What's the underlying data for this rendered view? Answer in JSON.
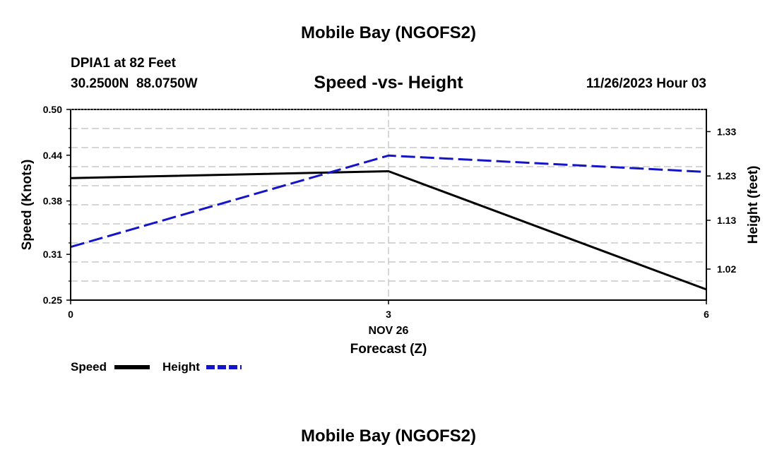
{
  "chart_data": {
    "type": "line",
    "title": "Mobile Bay (NGOFS2)",
    "station_line": "DPIA1 at 82 Feet",
    "coord_line": "30.2500N  88.0750W",
    "subtitle": "Speed -vs- Height",
    "datetime": "11/26/2023 Hour 03",
    "footer_title": "Mobile Bay (NGOFS2)",
    "xlabel": "Forecast (Z)",
    "xdate_label": "NOV 26",
    "ylabel_left": "Speed (Knots)",
    "ylabel_right": "Height (feet)",
    "xlim": [
      0,
      6
    ],
    "ylim_left": [
      0.25,
      0.5
    ],
    "ylim_right": [
      0.95,
      1.38
    ],
    "x_ticks": [
      0,
      3,
      6
    ],
    "x_tick_labels": [
      "0",
      "3",
      "6"
    ],
    "y_ticks_left": [
      0.25,
      0.31,
      0.38,
      0.44,
      0.5
    ],
    "y_tick_labels_left": [
      "0.25",
      "0.31",
      "0.38",
      "0.44",
      "0.50"
    ],
    "y_ticks_right": [
      1.02,
      1.13,
      1.23,
      1.33
    ],
    "y_tick_labels_right": [
      "1.02",
      "1.13",
      "1.23",
      "1.33"
    ],
    "grid_y_left": [
      0.275,
      0.3,
      0.325,
      0.35,
      0.375,
      0.4,
      0.425,
      0.45,
      0.475
    ],
    "grid_x": [
      3
    ],
    "series": [
      {
        "name": "Speed",
        "axis": "left",
        "color": "#000000",
        "dash": "solid",
        "x": [
          0,
          3,
          6
        ],
        "values": [
          0.41,
          0.419,
          0.264
        ]
      },
      {
        "name": "Height",
        "axis": "right",
        "color": "#1414c8",
        "dash": "dashed",
        "x": [
          0,
          3,
          6
        ],
        "values": [
          1.07,
          1.276,
          1.239
        ]
      }
    ],
    "legend": [
      {
        "label": "Speed",
        "color": "#000000",
        "dash": "solid"
      },
      {
        "label": "Height",
        "color": "#1414c8",
        "dash": "dashed"
      }
    ],
    "legend_position": "bottom-left",
    "grid": true
  }
}
